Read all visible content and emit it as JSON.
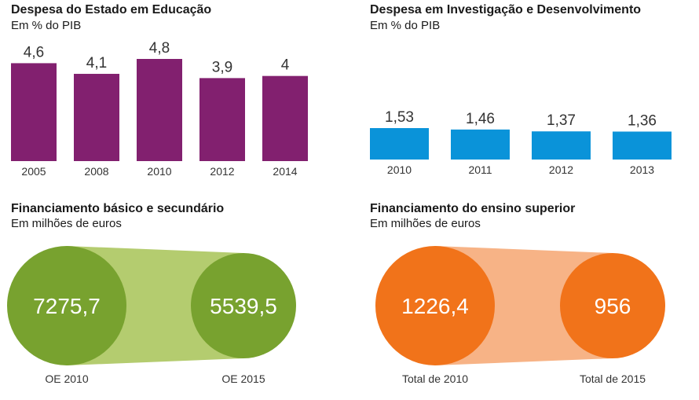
{
  "chart_data": [
    {
      "type": "bar",
      "title": "Despesa do Estado em Educação",
      "subtitle": "Em % do PIB",
      "categories": [
        "2005",
        "2008",
        "2010",
        "2012",
        "2014"
      ],
      "value_labels": [
        "4,6",
        "4,1",
        "4,8",
        "3,9",
        "4"
      ],
      "values": [
        4.6,
        4.1,
        4.8,
        3.9,
        4.0
      ],
      "ylim": [
        0,
        4.8
      ],
      "color": "#82206f"
    },
    {
      "type": "bar",
      "title": "Despesa em Investigação e Desenvolvimento",
      "subtitle": "Em % do PIB",
      "categories": [
        "2010",
        "2011",
        "2012",
        "2013"
      ],
      "value_labels": [
        "1,53",
        "1,46",
        "1,37",
        "1,36"
      ],
      "values": [
        1.53,
        1.46,
        1.37,
        1.36
      ],
      "ylim": [
        0,
        1.53
      ],
      "color": "#0a93d9"
    },
    {
      "type": "comparison",
      "title": "Financiamento básico e secundário",
      "subtitle": "Em milhões de euros",
      "categories": [
        "OE 2010",
        "OE 2015"
      ],
      "value_labels": [
        "7275,7",
        "5539,5"
      ],
      "values": [
        7275.7,
        5539.5
      ],
      "circle_color": "#78a22f",
      "band_color": "#b4cc6f"
    },
    {
      "type": "comparison",
      "title": "Financiamento do ensino superior",
      "subtitle": "Em milhões de euros",
      "categories": [
        "Total de 2010",
        "Total de 2015"
      ],
      "value_labels": [
        "1226,4",
        "956"
      ],
      "values": [
        1226.4,
        956
      ],
      "circle_color": "#f1731a",
      "band_color": "#f7b386"
    }
  ]
}
